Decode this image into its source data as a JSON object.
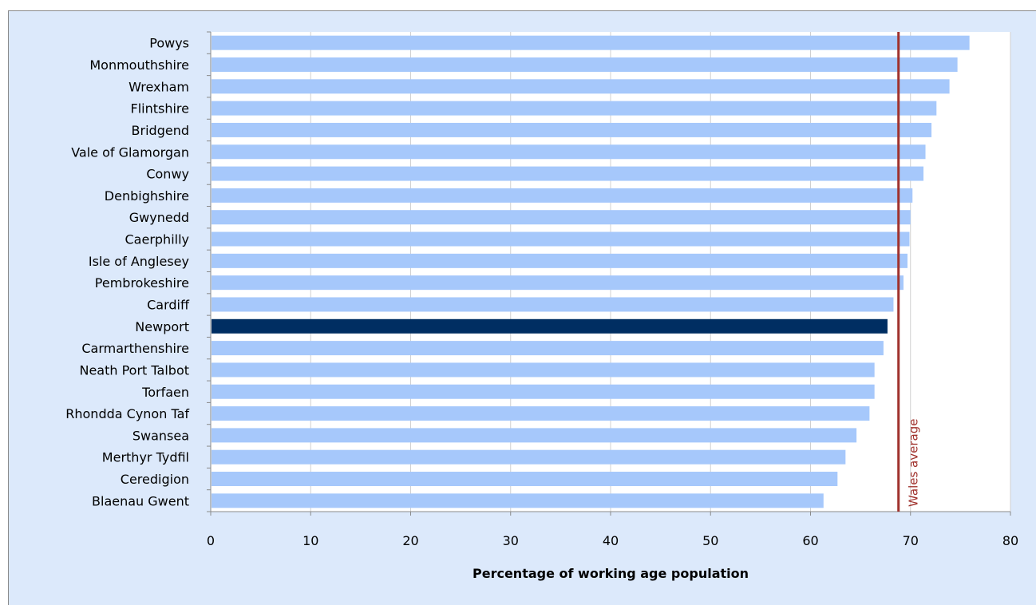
{
  "chart_data": {
    "type": "bar",
    "orientation": "horizontal",
    "title": "",
    "xlabel": "Percentage of working age population",
    "ylabel": "",
    "xlim": [
      0,
      80
    ],
    "x_ticks": [
      0,
      10,
      20,
      30,
      40,
      50,
      60,
      70,
      80
    ],
    "grid": true,
    "categories": [
      "Powys",
      "Monmouthshire",
      "Wrexham",
      "Flintshire",
      "Bridgend",
      "Vale of Glamorgan",
      "Conwy",
      "Denbighshire",
      "Gwynedd",
      "Caerphilly",
      "Isle of Anglesey",
      "Pembrokeshire",
      "Cardiff",
      "Newport",
      "Carmarthenshire",
      "Neath Port Talbot",
      "Torfaen",
      "Rhondda Cynon Taf",
      "Swansea",
      "Merthyr Tydfil",
      "Ceredigion",
      "Blaenau Gwent"
    ],
    "values": [
      75.9,
      74.7,
      73.9,
      72.6,
      72.1,
      71.5,
      71.3,
      70.2,
      70.0,
      69.9,
      69.7,
      69.3,
      68.3,
      67.7,
      67.3,
      66.4,
      66.4,
      65.9,
      64.6,
      63.5,
      62.7,
      61.3
    ],
    "highlight_category": "Newport",
    "reference_line": {
      "label": "Wales average",
      "value": 68.8
    },
    "colors": {
      "bar": "#a6c8fb",
      "highlight": "#002e62",
      "reference": "#a0322d",
      "plot_background": "#ffffff",
      "chart_background": "#dce9fb"
    }
  }
}
